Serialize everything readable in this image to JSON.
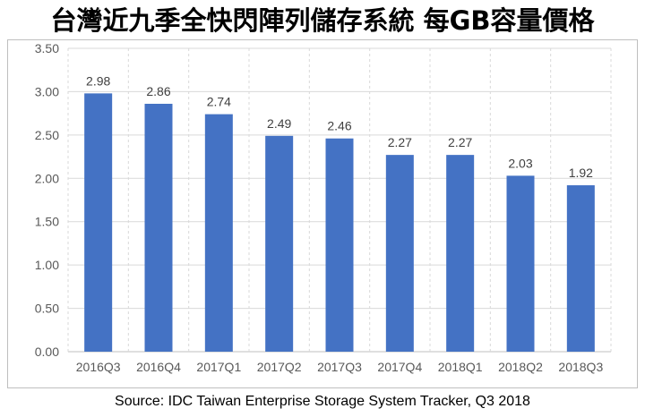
{
  "title": "台灣近九季全快閃陣列儲存系統 每GB容量價格",
  "source": "Source: IDC Taiwan Enterprise Storage System Tracker, Q3 2018",
  "chart_data": {
    "type": "bar",
    "categories": [
      "2016Q3",
      "2016Q4",
      "2017Q1",
      "2017Q2",
      "2017Q3",
      "2017Q4",
      "2018Q1",
      "2018Q2",
      "2018Q3"
    ],
    "values": [
      2.98,
      2.86,
      2.74,
      2.49,
      2.46,
      2.27,
      2.27,
      2.03,
      1.92
    ],
    "value_labels": [
      "2.98",
      "2.86",
      "2.74",
      "2.49",
      "2.46",
      "2.27",
      "2.27",
      "2.03",
      "1.92"
    ],
    "yticks": [
      "0.00",
      "0.50",
      "1.00",
      "1.50",
      "2.00",
      "2.50",
      "3.00",
      "3.50"
    ],
    "ylim": [
      0,
      3.5
    ],
    "grid": "horizontal solid, vertical dashed",
    "bar_color": "#4472c4"
  }
}
